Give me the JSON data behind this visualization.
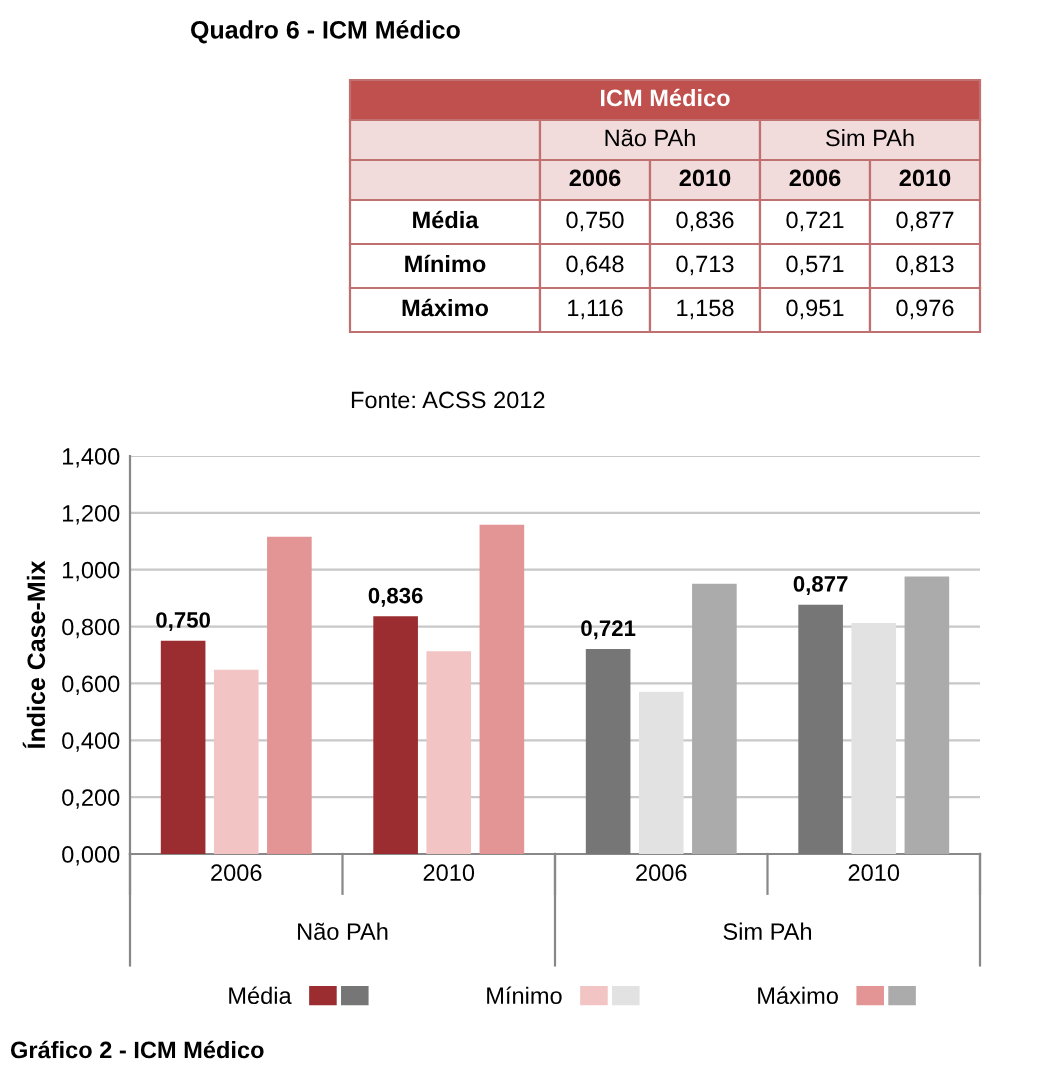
{
  "chart_data": {
    "type": "bar",
    "title": "Quadro 6 - ICM Médico",
    "subtitle": "ICM Médico",
    "ylabel": "Índice Case-Mix",
    "categories": [
      "2006",
      "2010",
      "2006",
      "2010"
    ],
    "series": [
      {
        "name": "Média",
        "colors": [
          "#9b2d30",
          "#9b2d30",
          "#767676",
          "#767676"
        ],
        "values": [
          0.75,
          0.836,
          0.721,
          0.877
        ],
        "value_labels": [
          "0,750",
          "0,836",
          "0,721",
          "0,877"
        ]
      },
      {
        "name": "Mínimo",
        "colors": [
          "#f2c4c4",
          "#f2c4c4",
          "#e2e2e2",
          "#e2e2e2"
        ],
        "values": [
          0.648,
          0.713,
          0.571,
          0.813
        ]
      },
      {
        "name": "Máximo",
        "colors": [
          "#e39595",
          "#e39595",
          "#ababab",
          "#ababab"
        ],
        "values": [
          1.116,
          1.158,
          0.951,
          0.976
        ]
      }
    ],
    "annotations": [
      "Não PAh",
      "Sim PAh",
      "Fonte: ACSS 2012",
      "Gráfico 2 - ICM Médico",
      "0,750",
      "0,836",
      "0,721",
      "0,877",
      "0,648",
      "0,713",
      "0,571",
      "0,813",
      "1,116",
      "1,158",
      "0,951",
      "0,976"
    ],
    "ylim": [
      0,
      1.4
    ],
    "yticks": [
      {
        "value": 0,
        "label": "0,000"
      },
      {
        "value": 0.2,
        "label": "0,200"
      },
      {
        "value": 0.4,
        "label": "0,400"
      },
      {
        "value": 0.6,
        "label": "0,600"
      },
      {
        "value": 0.8,
        "label": "0,800"
      },
      {
        "value": 1.0,
        "label": "1,000"
      },
      {
        "value": 1.2,
        "label": "1,200"
      },
      {
        "value": 1.4,
        "label": "1,400"
      }
    ],
    "grid": "y",
    "legend": "bottom"
  }
}
